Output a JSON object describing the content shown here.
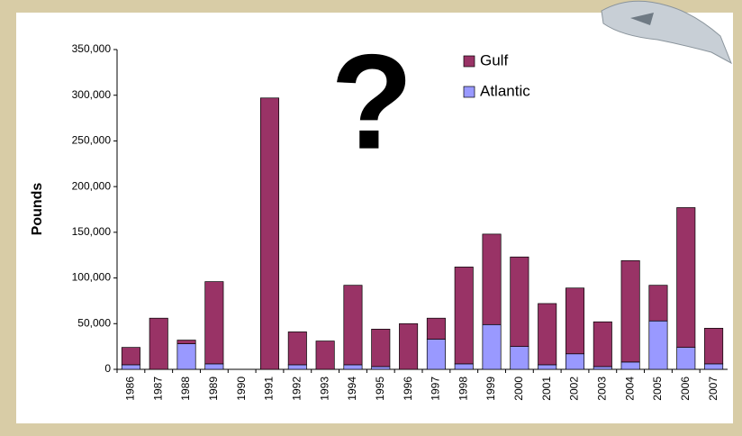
{
  "chart_data": {
    "type": "stacked-bar",
    "y_label": "Pounds",
    "annotation": "?",
    "categories": [
      "1986",
      "1987",
      "1988",
      "1989",
      "1990",
      "1991",
      "1992",
      "1993",
      "1994",
      "1995",
      "1996",
      "1997",
      "1998",
      "1999",
      "2000",
      "2001",
      "2002",
      "2003",
      "2004",
      "2005",
      "2006",
      "2007"
    ],
    "series": [
      {
        "name": "Gulf",
        "color": "#993366",
        "values": [
          19000,
          56000,
          4000,
          90000,
          0,
          297000,
          36000,
          31000,
          87000,
          41000,
          50000,
          23000,
          106000,
          99000,
          98000,
          67000,
          72000,
          49000,
          111000,
          39000,
          153000,
          39000
        ]
      },
      {
        "name": "Atlantic",
        "color": "#9999ff",
        "values": [
          5000,
          0,
          28000,
          6000,
          0,
          0,
          5000,
          0,
          5000,
          3000,
          0,
          33000,
          6000,
          49000,
          25000,
          5000,
          17000,
          3000,
          8000,
          53000,
          24000,
          6000
        ]
      }
    ],
    "ylim": [
      0,
      350000
    ],
    "yticks": [
      0,
      {
        "value": 50000,
        "label": "50,000"
      },
      {
        "value": 100000,
        "label": "100,000"
      },
      {
        "value": 150000,
        "label": "150,000"
      },
      {
        "value": 200000,
        "label": "200,000"
      },
      {
        "value": 250000,
        "label": "250,000"
      },
      {
        "value": 300000,
        "label": "300,000"
      },
      {
        "value": 350000,
        "label": "350,000"
      }
    ],
    "legend": "top-right"
  }
}
